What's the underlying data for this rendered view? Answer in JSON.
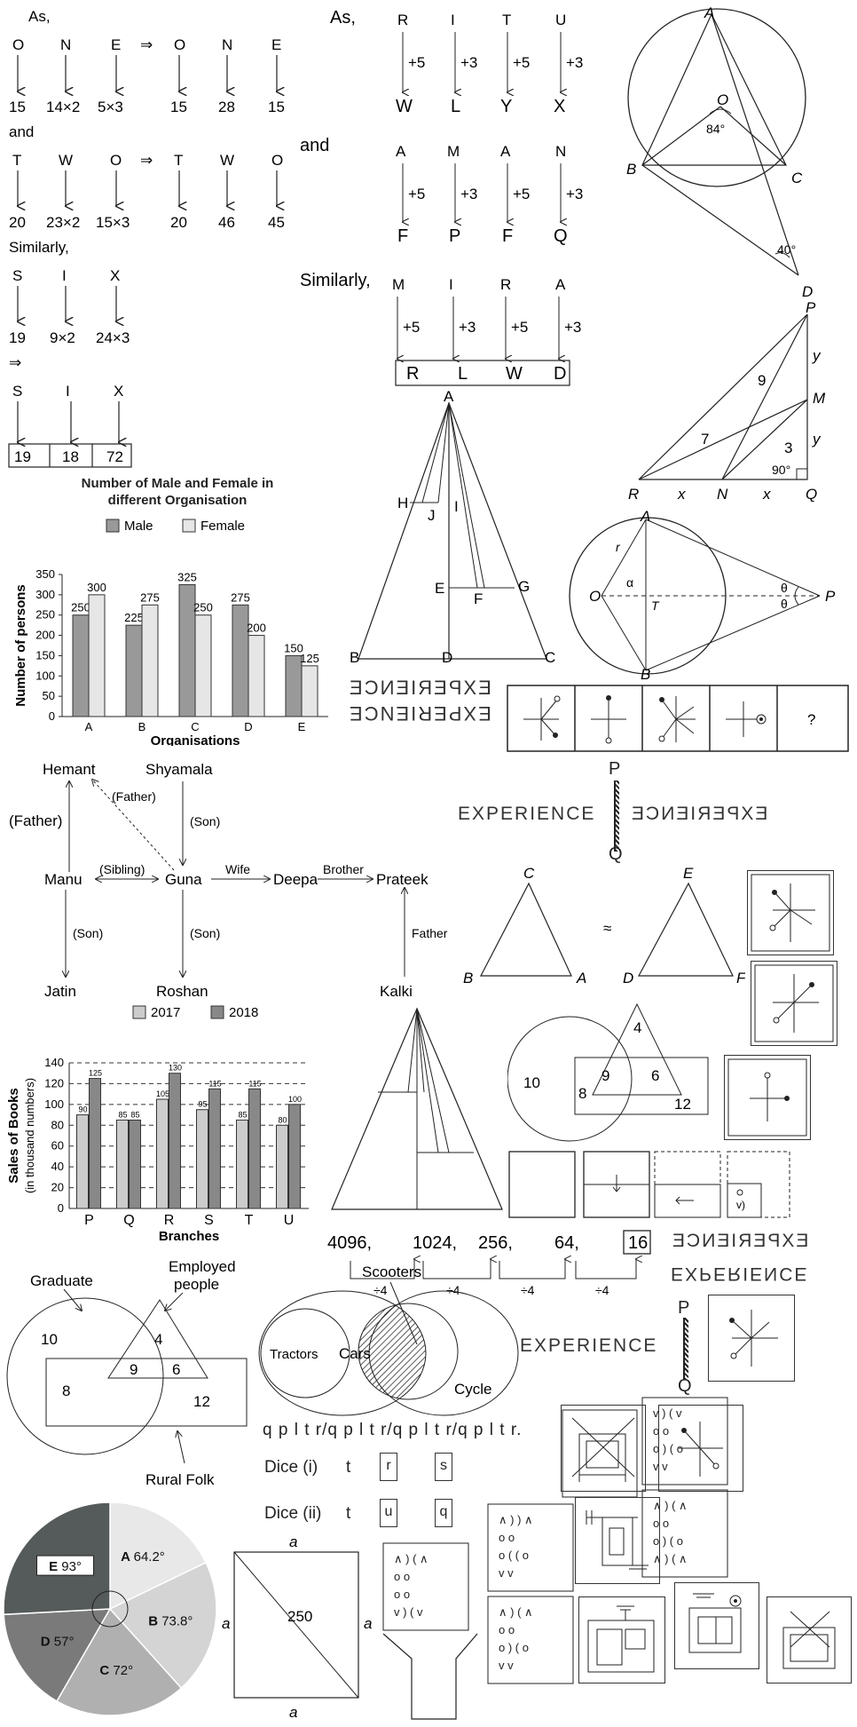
{
  "left_code": {
    "as_label": "As,",
    "and_label": "and",
    "similarly_label": "Similarly,",
    "implies": "⇒",
    "row1_letters": [
      "O",
      "N",
      "E",
      "O",
      "N",
      "E"
    ],
    "row1_values": [
      "15",
      "14×2",
      "5×3",
      "15",
      "28",
      "15"
    ],
    "row2_letters": [
      "T",
      "W",
      "O",
      "T",
      "W",
      "O"
    ],
    "row2_values": [
      "20",
      "23×2",
      "15×3",
      "20",
      "46",
      "45"
    ],
    "row3_letters": [
      "S",
      "I",
      "X"
    ],
    "row3_values": [
      "19",
      "9×2",
      "24×3"
    ],
    "row4_letters": [
      "S",
      "I",
      "X"
    ],
    "row4_answer": [
      "19",
      "18",
      "72"
    ]
  },
  "mid_code": {
    "as_label": "As,",
    "and_label": "and",
    "similarly_label": "Similarly,",
    "row1_top": [
      "R",
      "I",
      "T",
      "U"
    ],
    "row1_bottom": [
      "W",
      "L",
      "Y",
      "X"
    ],
    "row2_top": [
      "A",
      "M",
      "A",
      "N"
    ],
    "row2_bottom": [
      "F",
      "P",
      "F",
      "Q"
    ],
    "row3_top": [
      "M",
      "I",
      "R",
      "A"
    ],
    "row3_answer": [
      "R",
      "L",
      "W",
      "D"
    ],
    "shifts": [
      "+5",
      "+3",
      "+5",
      "+3"
    ]
  },
  "circle1": {
    "A": "A",
    "O": "O",
    "angle": "84°",
    "B": "B",
    "C": "C",
    "D": "D",
    "angle2": "40°"
  },
  "triangle_pq": {
    "P": "P",
    "M": "M",
    "R": "R",
    "N": "N",
    "Q": "Q",
    "x1": "x",
    "x2": "x",
    "y1": "y",
    "y2": "y",
    "n9": "9",
    "n7": "7",
    "n3": "3",
    "angle": "90°"
  },
  "triangle_a": {
    "A": "A",
    "H": "H",
    "J": "J",
    "I": "I",
    "E": "E",
    "F": "F",
    "G": "G",
    "B": "B",
    "D": "D",
    "C": "C"
  },
  "circle2": {
    "A": "A",
    "O": "O",
    "T": "T",
    "B": "B",
    "P": "P",
    "r": "r",
    "alpha": "α",
    "theta1": "θ",
    "theta2": "θ"
  },
  "bar_chart1": {
    "chart_data": {
      "type": "bar",
      "title": "Number of Male and Female in different Organisation",
      "xlabel": "Organisations",
      "ylabel": "Number of persons",
      "categories": [
        "A",
        "B",
        "C",
        "D",
        "E"
      ],
      "series": [
        {
          "name": "Male",
          "values": [
            250,
            225,
            325,
            275,
            150
          ],
          "color": "#999999"
        },
        {
          "name": "Female",
          "values": [
            300,
            275,
            250,
            200,
            125
          ],
          "color": "#e6e6e6"
        }
      ],
      "ylim": [
        0,
        350
      ],
      "yticks": [
        "0",
        "50",
        "100",
        "150",
        "200",
        "250",
        "300",
        "350"
      ],
      "grid": false,
      "legend": "top"
    }
  },
  "experience": {
    "word": "EXPERIENCE",
    "question": "?",
    "P": "P",
    "Q": "Q"
  },
  "family_tree": {
    "hemant": "Hemant",
    "shyamala": "Shyamala",
    "father1": "(Father)",
    "father2": "(Father)",
    "son1": "(Son)",
    "son2": "(Son)",
    "son3": "(Son)",
    "sibling": "(Sibling)",
    "manu": "Manu",
    "guna": "Guna",
    "wife": "Wife",
    "deepa": "Deepa",
    "brother": "Brother",
    "prateek": "Prateek",
    "father3": "Father",
    "jatin": "Jatin",
    "roshan": "Roshan",
    "kalki": "Kalki"
  },
  "triangles_cbad": {
    "C": "C",
    "B": "B",
    "A": "A",
    "E": "E",
    "D": "D",
    "F": "F",
    "approx": "≈"
  },
  "bar_chart2": {
    "chart_data": {
      "type": "bar",
      "xlabel": "Branches",
      "ylabel": "Sales of Books",
      "ylabel2": "(in thousand numbers)",
      "categories": [
        "P",
        "Q",
        "R",
        "S",
        "T",
        "U"
      ],
      "series": [
        {
          "name": "2017",
          "values": [
            90,
            85,
            105,
            95,
            85,
            80
          ],
          "color": "#cccccc"
        },
        {
          "name": "2018",
          "values": [
            125,
            85,
            130,
            115,
            115,
            100
          ],
          "color": "#888888"
        }
      ],
      "ylim": [
        0,
        140
      ],
      "yticks": [
        "0",
        "20",
        "40",
        "60",
        "80",
        "100",
        "120",
        "140"
      ],
      "grid": true,
      "legend": "top"
    }
  },
  "venn_small": {
    "n4": "4",
    "n10": "10",
    "n9": "9",
    "n6": "6",
    "n8": "8",
    "n12": "12"
  },
  "series": {
    "values": [
      "4096,",
      "1024,",
      "256,",
      "64,",
      "16"
    ],
    "ops": [
      "÷4",
      "÷4",
      "÷4",
      "÷4"
    ]
  },
  "venn_big": {
    "graduate": "Graduate",
    "employed": "Employed",
    "people": "people",
    "n10": "10",
    "n4": "4",
    "n8": "8",
    "n9": "9",
    "n6": "6",
    "n12": "12",
    "rural": "Rural Folk"
  },
  "vehicles": {
    "scooters": "Scooters",
    "tractors": "Tractors",
    "cars": "Cars",
    "cycle": "Cycle"
  },
  "pattern": {
    "text": "q p l t r/q p l t r/q p l t r/q p l t r."
  },
  "dice": {
    "d1": "Dice (i)",
    "d2": "Dice (ii)",
    "t1": "t",
    "t2": "t",
    "r": "r",
    "s": "s",
    "u": "u",
    "q": "q"
  },
  "pie": {
    "chart_data": {
      "type": "pie",
      "slices": [
        {
          "label": "A",
          "value": 64.2,
          "text": "64.2°",
          "color": "#e8e8e8"
        },
        {
          "label": "B",
          "value": 73.8,
          "text": "73.8°",
          "color": "#d4d4d4"
        },
        {
          "label": "C",
          "value": 72,
          "text": "72°",
          "color": "#b0b0b0"
        },
        {
          "label": "D",
          "value": 57,
          "text": "57°",
          "color": "#7a7a7a"
        },
        {
          "label": "E",
          "value": 93,
          "text": "93°",
          "color": "#555a5a"
        }
      ]
    }
  },
  "square": {
    "top": "a",
    "left": "a",
    "right": "a",
    "bottom": "a",
    "value": "250"
  }
}
